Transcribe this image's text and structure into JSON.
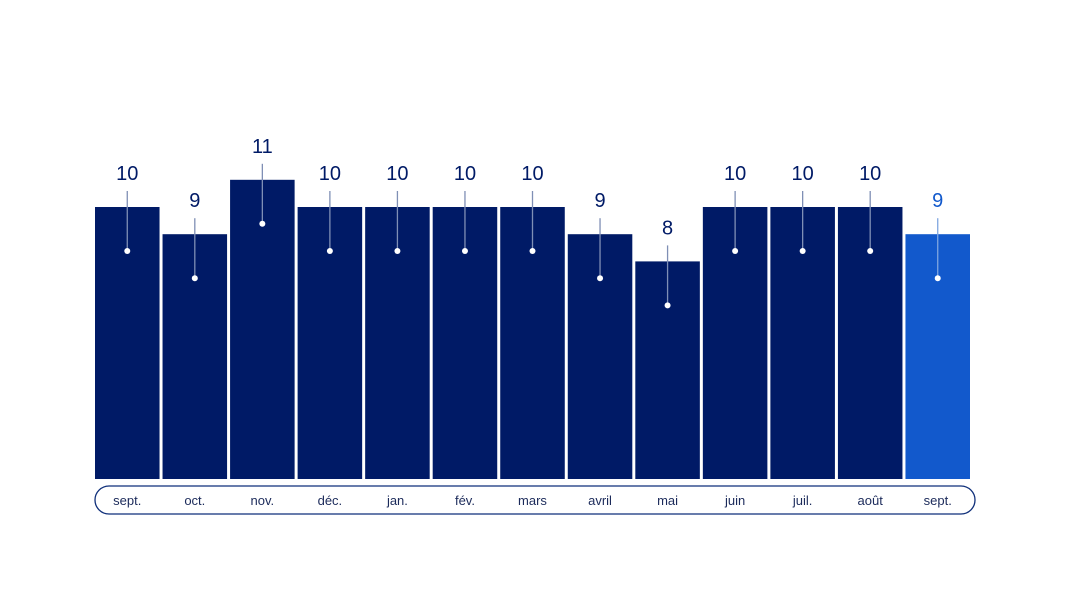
{
  "chart_data": {
    "type": "bar",
    "categories": [
      "sept.",
      "oct.",
      "nov.",
      "déc.",
      "jan.",
      "fév.",
      "mars",
      "avril",
      "mai",
      "juin",
      "juil.",
      "août",
      "sept."
    ],
    "values": [
      10,
      9,
      11,
      10,
      10,
      10,
      10,
      9,
      8,
      10,
      10,
      10,
      9
    ],
    "highlight_index": 12,
    "title": "",
    "xlabel": "",
    "ylabel": "",
    "ylim": [
      0,
      11
    ],
    "grid": false,
    "colors": {
      "bar": "#001a66",
      "bar_highlight": "#1259cc",
      "label": "#001a66",
      "label_highlight": "#1259cc",
      "connector": "#7f8fb5",
      "connector_highlight": "#7fa6e0",
      "dot": "#ffffff"
    }
  }
}
